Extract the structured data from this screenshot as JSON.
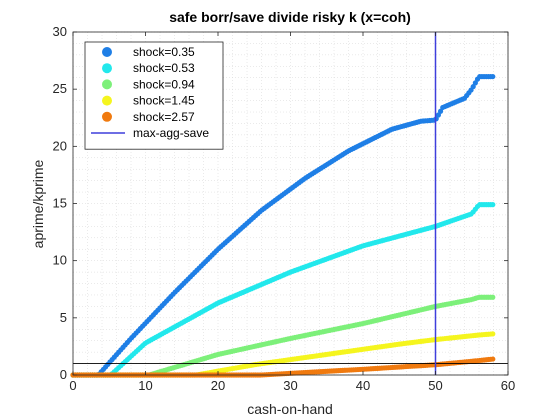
{
  "chart_data": {
    "type": "scatter",
    "title": "safe borr/save divide risky k (x=coh)",
    "xlabel": "cash-on-hand",
    "ylabel": "aprime/kprime",
    "xlim": [
      0,
      60
    ],
    "ylim": [
      0,
      30
    ],
    "xticks": [
      0,
      10,
      20,
      30,
      40,
      50,
      60
    ],
    "yticks": [
      0,
      5,
      10,
      15,
      20,
      25,
      30
    ],
    "grid": "minor-dotted",
    "legend_position": "top-left",
    "series": [
      {
        "name": "shock=0.35",
        "color": "#1f7fe6",
        "curve": [
          [
            0,
            0
          ],
          [
            3.5,
            0
          ],
          [
            8,
            3.2
          ],
          [
            14,
            7.2
          ],
          [
            20,
            11.0
          ],
          [
            26,
            14.4
          ],
          [
            32,
            17.2
          ],
          [
            38,
            19.6
          ],
          [
            44,
            21.5
          ],
          [
            48,
            22.2
          ],
          [
            50,
            22.3
          ],
          [
            51,
            23.4
          ],
          [
            54,
            24.2
          ],
          [
            55,
            25.0
          ],
          [
            56,
            26.1
          ],
          [
            58,
            26.1
          ]
        ]
      },
      {
        "name": "shock=0.53",
        "color": "#22e8ec",
        "curve": [
          [
            0,
            0
          ],
          [
            5.2,
            0
          ],
          [
            10,
            2.8
          ],
          [
            20,
            6.3
          ],
          [
            30,
            9.0
          ],
          [
            40,
            11.3
          ],
          [
            50,
            13.0
          ],
          [
            55,
            14.1
          ],
          [
            56,
            14.9
          ],
          [
            58,
            14.9
          ]
        ]
      },
      {
        "name": "shock=0.94",
        "color": "#7df07a",
        "curve": [
          [
            0,
            0
          ],
          [
            10.5,
            0
          ],
          [
            20,
            1.8
          ],
          [
            30,
            3.2
          ],
          [
            40,
            4.5
          ],
          [
            50,
            6.0
          ],
          [
            55,
            6.6
          ],
          [
            56,
            6.8
          ],
          [
            58,
            6.8
          ]
        ]
      },
      {
        "name": "shock=1.45",
        "color": "#f5f51e",
        "curve": [
          [
            0,
            0
          ],
          [
            17,
            0
          ],
          [
            25,
            0.9
          ],
          [
            35,
            1.8
          ],
          [
            45,
            2.7
          ],
          [
            50,
            3.1
          ],
          [
            56,
            3.5
          ],
          [
            58,
            3.6
          ]
        ]
      },
      {
        "name": "shock=2.57",
        "color": "#f07a0f",
        "curve": [
          [
            0,
            0
          ],
          [
            26,
            0
          ],
          [
            30,
            0.15
          ],
          [
            40,
            0.5
          ],
          [
            50,
            0.9
          ],
          [
            55,
            1.2
          ],
          [
            58,
            1.4
          ]
        ]
      }
    ],
    "vline": {
      "name": "max-agg-save",
      "x": 50,
      "color": "#3f3fdc"
    },
    "hline": {
      "y": 1,
      "color": "#000000"
    }
  }
}
